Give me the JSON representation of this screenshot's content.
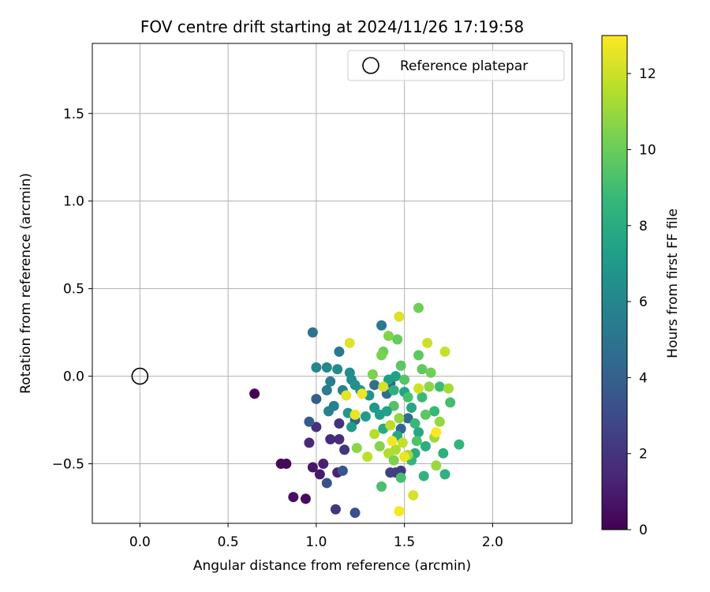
{
  "chart_data": {
    "type": "scatter",
    "title": "FOV centre drift starting at 2024/11/26 17:19:58",
    "xlabel": "Angular distance from reference (arcmin)",
    "ylabel": "Rotation from reference (arcmin)",
    "xlim": [
      -0.27,
      2.45
    ],
    "ylim": [
      -0.84,
      1.9
    ],
    "xticks": [
      "0.0",
      "0.5",
      "1.0",
      "1.5",
      "2.0"
    ],
    "xtick_values": [
      0.0,
      0.5,
      1.0,
      1.5,
      2.0
    ],
    "yticks": [
      "−0.5",
      "0.0",
      "0.5",
      "1.0",
      "1.5"
    ],
    "ytick_values": [
      -0.5,
      0.0,
      0.5,
      1.0,
      1.5
    ],
    "grid": true,
    "legend": {
      "placement": "top-right",
      "entries": [
        "Reference platepar"
      ]
    },
    "reference_point": {
      "x": 0.0,
      "y": 0.0
    },
    "colorbar": {
      "label": "Hours from first FF file",
      "min": 0,
      "max": 13,
      "ticks": [
        "0",
        "2",
        "4",
        "6",
        "8",
        "10",
        "12"
      ],
      "tick_values": [
        0,
        2,
        4,
        6,
        8,
        10,
        12
      ],
      "colormap": "viridis",
      "stops": [
        "#440154",
        "#482878",
        "#3e4989",
        "#31688e",
        "#26828e",
        "#1f9e89",
        "#35b779",
        "#6ece58",
        "#b5de2b",
        "#fde725"
      ]
    },
    "points": [
      {
        "x": 0.65,
        "y": -0.1,
        "c": 0.1
      },
      {
        "x": 0.8,
        "y": -0.5,
        "c": 0.2
      },
      {
        "x": 0.83,
        "y": -0.5,
        "c": 0.3
      },
      {
        "x": 0.94,
        "y": -0.7,
        "c": 0.4
      },
      {
        "x": 0.87,
        "y": -0.69,
        "c": 0.6
      },
      {
        "x": 0.98,
        "y": -0.52,
        "c": 0.8
      },
      {
        "x": 1.02,
        "y": -0.56,
        "c": 1.0
      },
      {
        "x": 1.04,
        "y": -0.5,
        "c": 1.2
      },
      {
        "x": 1.12,
        "y": -0.55,
        "c": 1.3
      },
      {
        "x": 0.96,
        "y": -0.38,
        "c": 1.5
      },
      {
        "x": 1.08,
        "y": -0.36,
        "c": 1.6
      },
      {
        "x": 1.13,
        "y": -0.36,
        "c": 1.7
      },
      {
        "x": 1.0,
        "y": -0.29,
        "c": 1.8
      },
      {
        "x": 1.13,
        "y": -0.27,
        "c": 1.9
      },
      {
        "x": 1.16,
        "y": -0.42,
        "c": 2.0
      },
      {
        "x": 1.11,
        "y": -0.76,
        "c": 2.1
      },
      {
        "x": 1.48,
        "y": -0.54,
        "c": 2.2
      },
      {
        "x": 1.45,
        "y": -0.55,
        "c": 2.4
      },
      {
        "x": 1.42,
        "y": -0.55,
        "c": 2.5
      },
      {
        "x": 1.22,
        "y": -0.78,
        "c": 3.2
      },
      {
        "x": 1.06,
        "y": -0.61,
        "c": 3.4
      },
      {
        "x": 1.15,
        "y": -0.54,
        "c": 3.6
      },
      {
        "x": 0.96,
        "y": -0.26,
        "c": 3.7
      },
      {
        "x": 1.0,
        "y": -0.13,
        "c": 3.9
      },
      {
        "x": 1.22,
        "y": -0.25,
        "c": 4.0
      },
      {
        "x": 1.42,
        "y": -0.04,
        "c": 4.1
      },
      {
        "x": 1.48,
        "y": -0.3,
        "c": 4.3
      },
      {
        "x": 1.52,
        "y": -0.24,
        "c": 4.5
      },
      {
        "x": 1.4,
        "y": -0.1,
        "c": 4.6
      },
      {
        "x": 1.33,
        "y": -0.05,
        "c": 4.7
      },
      {
        "x": 0.98,
        "y": 0.25,
        "c": 5.0
      },
      {
        "x": 1.13,
        "y": 0.14,
        "c": 5.2
      },
      {
        "x": 1.37,
        "y": 0.29,
        "c": 5.3
      },
      {
        "x": 1.06,
        "y": -0.08,
        "c": 5.4
      },
      {
        "x": 1.08,
        "y": -0.03,
        "c": 5.6
      },
      {
        "x": 1.1,
        "y": -0.17,
        "c": 5.7
      },
      {
        "x": 1.07,
        "y": -0.2,
        "c": 5.8
      },
      {
        "x": 1.15,
        "y": -0.08,
        "c": 5.9
      },
      {
        "x": 1.0,
        "y": 0.05,
        "c": 6.0
      },
      {
        "x": 1.06,
        "y": 0.05,
        "c": 6.1
      },
      {
        "x": 1.12,
        "y": 0.04,
        "c": 6.2
      },
      {
        "x": 1.19,
        "y": 0.02,
        "c": 6.3
      },
      {
        "x": 1.2,
        "y": -0.02,
        "c": 6.4
      },
      {
        "x": 1.22,
        "y": -0.05,
        "c": 6.5
      },
      {
        "x": 1.25,
        "y": -0.08,
        "c": 6.6
      },
      {
        "x": 1.3,
        "y": -0.11,
        "c": 6.7
      },
      {
        "x": 1.33,
        "y": -0.18,
        "c": 6.8
      },
      {
        "x": 1.18,
        "y": -0.21,
        "c": 6.9
      },
      {
        "x": 1.2,
        "y": -0.29,
        "c": 7.0
      },
      {
        "x": 1.28,
        "y": -0.23,
        "c": 7.1
      },
      {
        "x": 1.36,
        "y": -0.22,
        "c": 7.2
      },
      {
        "x": 1.41,
        "y": -0.02,
        "c": 7.3
      },
      {
        "x": 1.45,
        "y": 0.0,
        "c": 7.4
      },
      {
        "x": 1.5,
        "y": -0.09,
        "c": 7.5
      },
      {
        "x": 1.54,
        "y": -0.18,
        "c": 7.6
      },
      {
        "x": 1.58,
        "y": -0.32,
        "c": 7.7
      },
      {
        "x": 1.46,
        "y": -0.34,
        "c": 7.8
      },
      {
        "x": 1.38,
        "y": -0.3,
        "c": 7.9
      },
      {
        "x": 1.56,
        "y": -0.44,
        "c": 8.0
      },
      {
        "x": 1.62,
        "y": -0.4,
        "c": 8.1
      },
      {
        "x": 1.72,
        "y": -0.44,
        "c": 8.2
      },
      {
        "x": 1.73,
        "y": -0.56,
        "c": 8.3
      },
      {
        "x": 1.61,
        "y": -0.57,
        "c": 8.4
      },
      {
        "x": 1.54,
        "y": -0.48,
        "c": 8.5
      },
      {
        "x": 1.81,
        "y": -0.39,
        "c": 8.6
      },
      {
        "x": 1.67,
        "y": -0.2,
        "c": 8.7
      },
      {
        "x": 1.6,
        "y": -0.12,
        "c": 8.8
      },
      {
        "x": 1.7,
        "y": -0.06,
        "c": 8.9
      },
      {
        "x": 1.76,
        "y": -0.15,
        "c": 9.0
      },
      {
        "x": 1.48,
        "y": -0.58,
        "c": 9.1
      },
      {
        "x": 1.37,
        "y": -0.63,
        "c": 9.2
      },
      {
        "x": 1.57,
        "y": -0.37,
        "c": 9.3
      },
      {
        "x": 1.44,
        "y": -0.17,
        "c": 9.4
      },
      {
        "x": 1.5,
        "y": -0.02,
        "c": 9.5
      },
      {
        "x": 1.48,
        "y": 0.06,
        "c": 9.6
      },
      {
        "x": 1.58,
        "y": 0.12,
        "c": 9.7
      },
      {
        "x": 1.6,
        "y": 0.04,
        "c": 9.8
      },
      {
        "x": 1.46,
        "y": 0.21,
        "c": 9.9
      },
      {
        "x": 1.38,
        "y": 0.14,
        "c": 10.0
      },
      {
        "x": 1.58,
        "y": 0.39,
        "c": 10.1
      },
      {
        "x": 1.65,
        "y": 0.02,
        "c": 10.2
      },
      {
        "x": 1.37,
        "y": 0.12,
        "c": 10.3
      },
      {
        "x": 1.32,
        "y": 0.01,
        "c": 10.4
      },
      {
        "x": 1.41,
        "y": 0.23,
        "c": 10.5
      },
      {
        "x": 1.36,
        "y": -0.4,
        "c": 10.6
      },
      {
        "x": 1.23,
        "y": -0.41,
        "c": 10.7
      },
      {
        "x": 1.64,
        "y": -0.06,
        "c": 10.8
      },
      {
        "x": 1.7,
        "y": -0.26,
        "c": 10.9
      },
      {
        "x": 1.68,
        "y": -0.51,
        "c": 11.0
      },
      {
        "x": 1.67,
        "y": -0.35,
        "c": 11.1
      },
      {
        "x": 1.75,
        "y": -0.07,
        "c": 11.2
      },
      {
        "x": 1.52,
        "y": -0.45,
        "c": 11.3
      },
      {
        "x": 1.45,
        "y": -0.42,
        "c": 11.4
      },
      {
        "x": 1.41,
        "y": -0.44,
        "c": 11.5
      },
      {
        "x": 1.33,
        "y": -0.33,
        "c": 11.6
      },
      {
        "x": 1.29,
        "y": -0.46,
        "c": 11.7
      },
      {
        "x": 1.49,
        "y": -0.38,
        "c": 11.8
      },
      {
        "x": 1.73,
        "y": 0.14,
        "c": 11.9
      },
      {
        "x": 1.63,
        "y": 0.19,
        "c": 12.0
      },
      {
        "x": 1.58,
        "y": -0.07,
        "c": 12.1
      },
      {
        "x": 1.55,
        "y": -0.68,
        "c": 12.2
      },
      {
        "x": 1.47,
        "y": 0.34,
        "c": 12.3
      },
      {
        "x": 1.19,
        "y": 0.19,
        "c": 12.4
      },
      {
        "x": 1.17,
        "y": -0.11,
        "c": 12.5
      },
      {
        "x": 1.22,
        "y": -0.22,
        "c": 12.6
      },
      {
        "x": 1.26,
        "y": -0.1,
        "c": 12.7
      },
      {
        "x": 1.43,
        "y": -0.37,
        "c": 12.8
      },
      {
        "x": 1.47,
        "y": -0.77,
        "c": 12.9
      },
      {
        "x": 1.68,
        "y": -0.32,
        "c": 13.0
      },
      {
        "x": 1.4,
        "y": -0.2,
        "c": 7.4
      },
      {
        "x": 1.44,
        "y": -0.08,
        "c": 8.3
      },
      {
        "x": 1.52,
        "y": -0.12,
        "c": 9.2
      },
      {
        "x": 1.56,
        "y": -0.27,
        "c": 8.7
      },
      {
        "x": 1.62,
        "y": -0.22,
        "c": 9.6
      },
      {
        "x": 1.47,
        "y": -0.24,
        "c": 10.8
      },
      {
        "x": 1.42,
        "y": -0.28,
        "c": 11.6
      },
      {
        "x": 1.38,
        "y": -0.06,
        "c": 12.2
      },
      {
        "x": 1.5,
        "y": -0.46,
        "c": 12.6
      },
      {
        "x": 1.44,
        "y": -0.48,
        "c": 10.4
      }
    ]
  }
}
